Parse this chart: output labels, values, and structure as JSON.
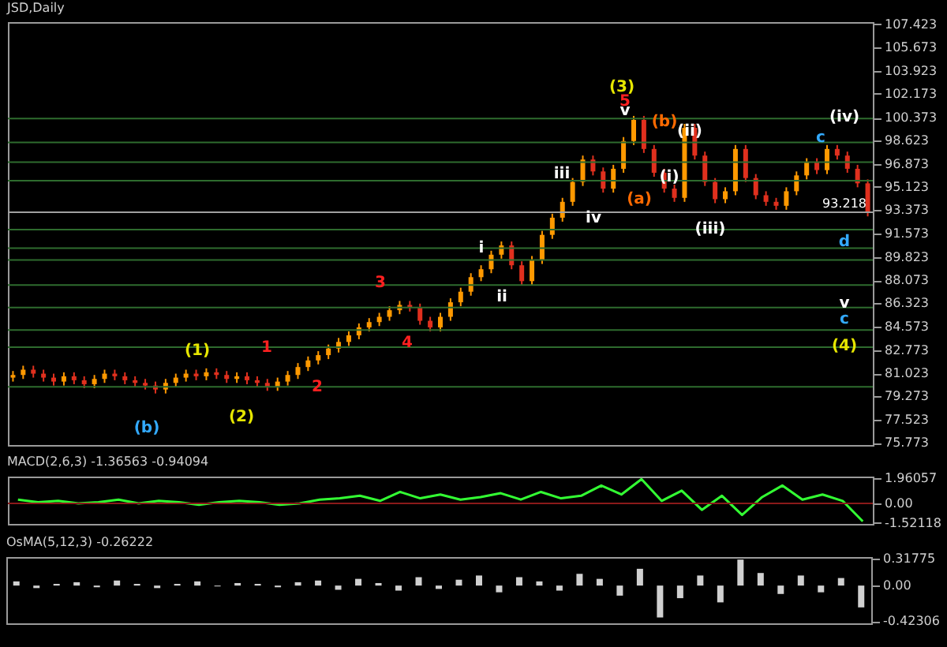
{
  "chart_data": [
    {
      "type": "candlestick",
      "title": "JSD,Daily",
      "categories": [
        null,
        null,
        null,
        null,
        null,
        null,
        null,
        null,
        null,
        null,
        null,
        null,
        null,
        null,
        null,
        null,
        null,
        null,
        null,
        null,
        null,
        null,
        null,
        null,
        null,
        null,
        null,
        null,
        null,
        null,
        null,
        null,
        null,
        null,
        null,
        null,
        null,
        null,
        null,
        null,
        null,
        null,
        null,
        null,
        null,
        null,
        null,
        null,
        null,
        null,
        null,
        null,
        null,
        null,
        null,
        null,
        null,
        null,
        null,
        null,
        null,
        null,
        null,
        null,
        null,
        null,
        null,
        null,
        null,
        null,
        null,
        null,
        null,
        null,
        null,
        null,
        null,
        null,
        null,
        null,
        null,
        null,
        null,
        null,
        null
      ],
      "ohlc": [
        [
          80.7,
          81.2,
          80.4,
          80.9
        ],
        [
          80.9,
          81.6,
          80.6,
          81.3
        ],
        [
          81.3,
          81.6,
          80.7,
          81.0
        ],
        [
          81.0,
          81.3,
          80.4,
          80.7
        ],
        [
          80.7,
          81.0,
          80.1,
          80.4
        ],
        [
          80.4,
          81.1,
          80.1,
          80.8
        ],
        [
          80.8,
          81.1,
          80.2,
          80.5
        ],
        [
          80.5,
          80.8,
          79.9,
          80.2
        ],
        [
          80.2,
          80.9,
          79.9,
          80.6
        ],
        [
          80.6,
          81.3,
          80.3,
          81.0
        ],
        [
          81.0,
          81.3,
          80.5,
          80.8
        ],
        [
          80.8,
          81.1,
          80.2,
          80.5
        ],
        [
          80.5,
          80.8,
          80.0,
          80.3
        ],
        [
          80.3,
          80.6,
          79.8,
          80.1
        ],
        [
          80.1,
          80.4,
          79.5,
          79.8
        ],
        [
          79.8,
          80.6,
          79.5,
          80.3
        ],
        [
          80.3,
          81.0,
          80.0,
          80.7
        ],
        [
          80.7,
          81.3,
          80.4,
          81.0
        ],
        [
          81.0,
          81.3,
          80.5,
          80.8
        ],
        [
          80.8,
          81.4,
          80.5,
          81.1
        ],
        [
          81.1,
          81.4,
          80.6,
          80.9
        ],
        [
          80.9,
          81.2,
          80.3,
          80.6
        ],
        [
          80.6,
          81.1,
          80.3,
          80.8
        ],
        [
          80.8,
          81.1,
          80.2,
          80.5
        ],
        [
          80.5,
          80.8,
          80.0,
          80.3
        ],
        [
          80.3,
          80.6,
          79.7,
          80.0
        ],
        [
          80.0,
          80.7,
          79.7,
          80.4
        ],
        [
          80.4,
          81.2,
          80.1,
          80.9
        ],
        [
          80.9,
          81.8,
          80.6,
          81.5
        ],
        [
          81.5,
          82.3,
          81.2,
          82.0
        ],
        [
          82.0,
          82.7,
          81.7,
          82.4
        ],
        [
          82.4,
          83.2,
          82.1,
          82.9
        ],
        [
          82.9,
          83.7,
          82.6,
          83.4
        ],
        [
          83.4,
          84.2,
          83.1,
          83.9
        ],
        [
          83.9,
          84.8,
          83.6,
          84.5
        ],
        [
          84.5,
          85.2,
          84.2,
          84.9
        ],
        [
          84.9,
          85.6,
          84.6,
          85.3
        ],
        [
          85.3,
          86.1,
          85.0,
          85.8
        ],
        [
          85.8,
          86.5,
          85.5,
          86.2
        ],
        [
          86.2,
          86.5,
          85.7,
          86.0
        ],
        [
          86.0,
          86.3,
          84.7,
          85.0
        ],
        [
          85.0,
          85.3,
          84.2,
          84.5
        ],
        [
          84.5,
          85.6,
          84.2,
          85.3
        ],
        [
          85.3,
          86.7,
          85.0,
          86.4
        ],
        [
          86.4,
          87.5,
          86.1,
          87.2
        ],
        [
          87.2,
          88.6,
          86.9,
          88.3
        ],
        [
          88.3,
          89.2,
          88.0,
          88.9
        ],
        [
          88.9,
          90.3,
          88.6,
          90.0
        ],
        [
          90.0,
          91.0,
          89.7,
          90.7
        ],
        [
          90.7,
          91.0,
          88.9,
          89.2
        ],
        [
          89.2,
          89.5,
          87.7,
          88.0
        ],
        [
          88.0,
          89.9,
          87.7,
          89.6
        ],
        [
          89.6,
          91.8,
          89.3,
          91.5
        ],
        [
          91.5,
          93.1,
          91.2,
          92.8
        ],
        [
          92.8,
          94.3,
          92.5,
          94.0
        ],
        [
          94.0,
          95.8,
          93.7,
          95.5
        ],
        [
          95.5,
          97.5,
          95.2,
          97.2
        ],
        [
          97.2,
          97.5,
          96.0,
          96.3
        ],
        [
          96.3,
          96.6,
          94.7,
          95.0
        ],
        [
          95.0,
          96.8,
          94.7,
          96.5
        ],
        [
          96.5,
          98.9,
          96.2,
          98.6
        ],
        [
          98.6,
          100.5,
          98.3,
          100.2
        ],
        [
          100.2,
          100.5,
          97.7,
          98.0
        ],
        [
          98.0,
          98.3,
          95.9,
          96.2
        ],
        [
          96.2,
          96.5,
          94.7,
          95.0
        ],
        [
          95.0,
          95.3,
          94.0,
          94.3
        ],
        [
          94.3,
          99.9,
          94.0,
          99.6
        ],
        [
          99.6,
          99.9,
          97.2,
          97.5
        ],
        [
          97.5,
          97.8,
          95.2,
          95.5
        ],
        [
          95.5,
          95.8,
          93.9,
          94.2
        ],
        [
          94.2,
          95.1,
          93.9,
          94.8
        ],
        [
          94.8,
          98.3,
          94.5,
          98.0
        ],
        [
          98.0,
          98.3,
          95.5,
          95.8
        ],
        [
          95.8,
          96.1,
          94.2,
          94.5
        ],
        [
          94.5,
          94.8,
          93.7,
          94.0
        ],
        [
          94.0,
          94.3,
          93.4,
          93.7
        ],
        [
          93.7,
          95.1,
          93.4,
          94.8
        ],
        [
          94.8,
          96.3,
          94.5,
          96.0
        ],
        [
          96.0,
          97.3,
          95.7,
          97.0
        ],
        [
          97.0,
          97.3,
          96.1,
          96.4
        ],
        [
          96.4,
          98.3,
          96.1,
          98.0
        ],
        [
          98.0,
          98.3,
          97.2,
          97.5
        ],
        [
          97.5,
          97.8,
          96.2,
          96.5
        ],
        [
          96.5,
          96.8,
          95.1,
          95.4
        ],
        [
          95.4,
          95.7,
          92.9,
          93.2
        ]
      ],
      "ylim": [
        75.6,
        107.6
      ],
      "yticks": [
        107.423,
        105.673,
        103.923,
        102.173,
        100.373,
        98.623,
        96.873,
        95.123,
        93.373,
        91.573,
        89.823,
        88.073,
        86.323,
        84.573,
        82.773,
        81.023,
        79.273,
        77.523,
        75.773
      ],
      "ref_lines": [
        {
          "axis": "y",
          "value": 100.3,
          "color": "#2e6b2e"
        },
        {
          "axis": "y",
          "value": 98.5,
          "color": "#2e6b2e"
        },
        {
          "axis": "y",
          "value": 97.0,
          "color": "#2e6b2e"
        },
        {
          "axis": "y",
          "value": 95.6,
          "color": "#2e6b2e"
        },
        {
          "axis": "y",
          "value": 91.9,
          "color": "#2e6b2e"
        },
        {
          "axis": "y",
          "value": 90.5,
          "color": "#2e6b2e"
        },
        {
          "axis": "y",
          "value": 89.6,
          "color": "#2e6b2e"
        },
        {
          "axis": "y",
          "value": 87.7,
          "color": "#2e6b2e"
        },
        {
          "axis": "y",
          "value": 86.0,
          "color": "#2e6b2e"
        },
        {
          "axis": "y",
          "value": 84.3,
          "color": "#2e6b2e"
        },
        {
          "axis": "y",
          "value": 83.0,
          "color": "#2e6b2e"
        },
        {
          "axis": "y",
          "value": 80.0,
          "color": "#2e6b2e"
        },
        {
          "axis": "y",
          "value": 93.218,
          "label": "93.218",
          "color": "#a0a0a0"
        }
      ],
      "annotations": [
        "(3)",
        "5",
        "v",
        "(b)",
        "(ii)",
        "(i)",
        "(a)",
        "(iii)",
        "iv",
        "iii",
        "i",
        "ii",
        "3",
        "4",
        "2",
        "1",
        "(1)",
        "(2)",
        "(b)",
        "(iv)",
        "c",
        "d",
        "v",
        "c",
        "(4)"
      ],
      "grid": false
    },
    {
      "type": "line",
      "title": "MACD(2,6,3) -1.36563 -0.94094",
      "categories": [
        null,
        null,
        null,
        null,
        null,
        null,
        null,
        null,
        null,
        null,
        null,
        null,
        null,
        null,
        null,
        null,
        null,
        null,
        null,
        null,
        null,
        null,
        null,
        null,
        null,
        null,
        null,
        null,
        null,
        null,
        null,
        null,
        null,
        null,
        null,
        null,
        null,
        null,
        null,
        null,
        null,
        null,
        null
      ],
      "series": [
        {
          "color": "#33ff33",
          "values": [
            0.3,
            0.1,
            0.2,
            0.0,
            0.1,
            0.3,
            0.0,
            0.2,
            0.1,
            -0.1,
            0.1,
            0.2,
            0.1,
            -0.1,
            0.0,
            0.3,
            0.4,
            0.6,
            0.2,
            0.9,
            0.4,
            0.7,
            0.3,
            0.5,
            0.8,
            0.3,
            0.9,
            0.4,
            0.6,
            1.4,
            0.7,
            1.9,
            0.2,
            1.0,
            -0.5,
            0.6,
            -0.9,
            0.5,
            1.4,
            0.3,
            0.7,
            0.2,
            -1.4
          ]
        }
      ],
      "ylim": [
        -1.6,
        2.1
      ],
      "yticks": [
        1.96057,
        {
          "value": 0,
          "label": "0.00"
        },
        -1.52118
      ],
      "ref_lines": [
        {
          "axis": "y",
          "value": 0,
          "color": "#8b1a1a"
        }
      ],
      "grid": false
    },
    {
      "type": "bar",
      "title": "OsMA(5,12,3) -0.26222",
      "categories": [
        null,
        null,
        null,
        null,
        null,
        null,
        null,
        null,
        null,
        null,
        null,
        null,
        null,
        null,
        null,
        null,
        null,
        null,
        null,
        null,
        null,
        null,
        null,
        null,
        null,
        null,
        null,
        null,
        null,
        null,
        null,
        null,
        null,
        null,
        null,
        null,
        null,
        null,
        null,
        null,
        null,
        null,
        null
      ],
      "values": [
        0.05,
        -0.03,
        0.02,
        0.04,
        -0.02,
        0.06,
        0.02,
        -0.03,
        0.02,
        0.05,
        -0.01,
        0.03,
        0.02,
        -0.02,
        0.04,
        0.06,
        -0.05,
        0.08,
        0.03,
        -0.06,
        0.1,
        -0.04,
        0.07,
        0.12,
        -0.08,
        0.1,
        0.05,
        -0.06,
        0.14,
        0.08,
        -0.12,
        0.2,
        -0.38,
        -0.15,
        0.12,
        -0.2,
        0.31,
        0.15,
        -0.1,
        0.12,
        -0.08,
        0.09,
        -0.26
      ],
      "color": "#d0d0d0",
      "ylim": [
        -0.45,
        0.34
      ],
      "yticks": [
        0.31775,
        {
          "value": 0,
          "label": "0.00"
        },
        -0.42306
      ],
      "grid": false
    }
  ]
}
